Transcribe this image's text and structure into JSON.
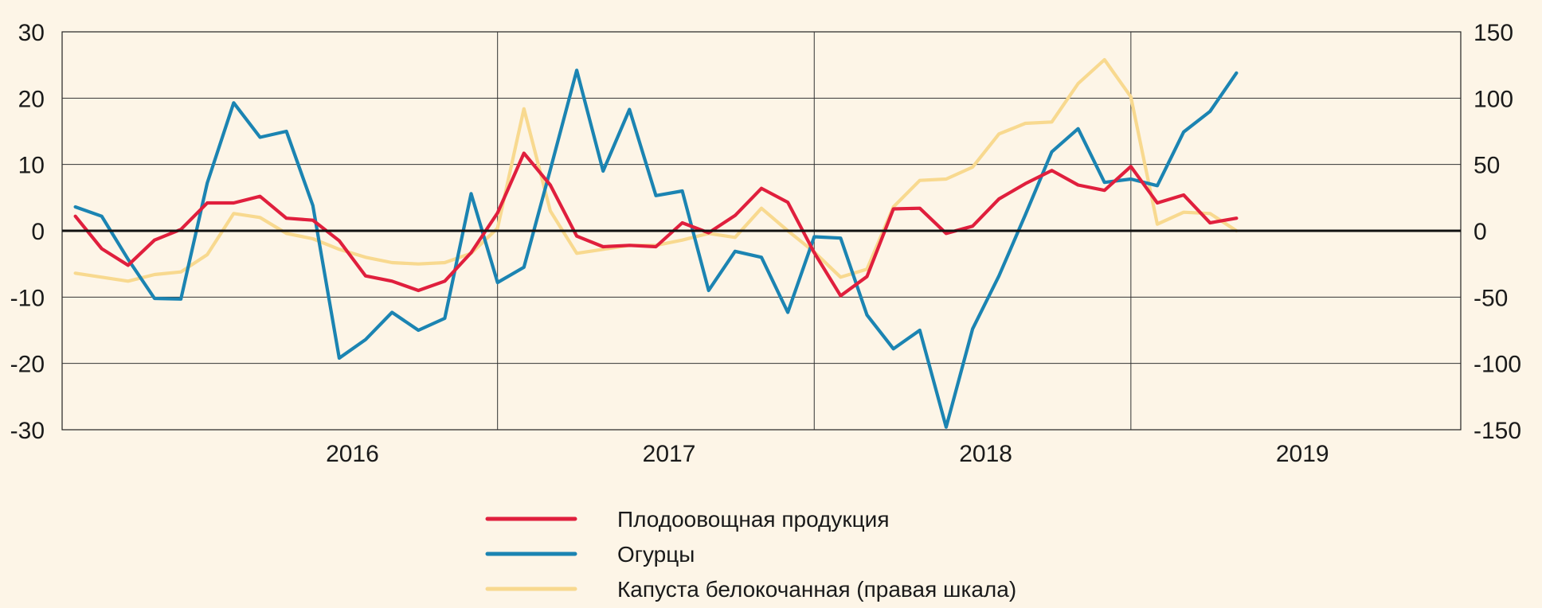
{
  "chart_data": {
    "type": "line",
    "title": "",
    "x_start": "2015-08",
    "x_end": "2019-12",
    "year_labels": [
      "2016",
      "2017",
      "2018",
      "2019"
    ],
    "y_left": {
      "min": -30,
      "max": 30,
      "ticks": [
        -30,
        -20,
        -10,
        0,
        10,
        20,
        30
      ]
    },
    "y_right": {
      "min": -150,
      "max": 150,
      "ticks": [
        -150,
        -100,
        -50,
        0,
        50,
        100,
        150
      ]
    },
    "grid": true,
    "legend_position": "bottom-center",
    "series": [
      {
        "name": "Плодоовощная продукция",
        "axis": "left",
        "color": "#e01f3d",
        "start": "2015-08",
        "values": [
          2.2,
          -2.7,
          -5.2,
          -1.4,
          0.2,
          4.2,
          4.2,
          5.2,
          1.9,
          1.6,
          -1.5,
          -6.8,
          -7.6,
          -9.0,
          -7.6,
          -3.3,
          2.7,
          11.7,
          6.9,
          -0.8,
          -2.4,
          -2.2,
          -2.4,
          1.2,
          -0.3,
          2.3,
          6.4,
          4.3,
          -3.3,
          -9.8,
          -6.9,
          3.3,
          3.4,
          -0.4,
          0.7,
          4.8,
          7.1,
          9.1,
          6.9,
          6.1,
          9.7,
          4.2,
          5.4,
          1.2,
          1.9
        ]
      },
      {
        "name": "Огурцы",
        "axis": "left",
        "color": "#1b84b2",
        "start": "2015-08",
        "values": [
          3.6,
          2.2,
          -4.3,
          -10.2,
          -10.3,
          7.2,
          19.3,
          14.1,
          15.0,
          3.8,
          -19.2,
          -16.4,
          -12.3,
          -15.0,
          -13.2,
          5.6,
          -7.8,
          -5.5,
          9.2,
          24.2,
          9.0,
          18.3,
          5.3,
          6.0,
          -9.0,
          -3.1,
          -4.0,
          -12.3,
          -0.9,
          -1.1,
          -12.7,
          -17.8,
          -15.0,
          -29.6,
          -14.8,
          -6.8,
          2.4,
          11.9,
          15.4,
          7.3,
          7.8,
          6.8,
          14.9,
          18.0,
          23.8
        ]
      },
      {
        "name": "Капуста белокочанная (правая шкала)",
        "axis": "right",
        "color": "#f8d98f",
        "start": "2015-08",
        "values": [
          -32,
          -35,
          -38,
          -33,
          -31,
          -18,
          13,
          10,
          -2,
          -6,
          -14,
          -20,
          -24,
          -25,
          -24,
          -17,
          2,
          92,
          15,
          -17,
          -14,
          -11,
          -11,
          -7,
          -2,
          -5,
          17,
          0,
          -16,
          -35,
          -29,
          18,
          38,
          39,
          48,
          73,
          81,
          82,
          111,
          129,
          101,
          5,
          14,
          13,
          0
        ]
      }
    ]
  }
}
